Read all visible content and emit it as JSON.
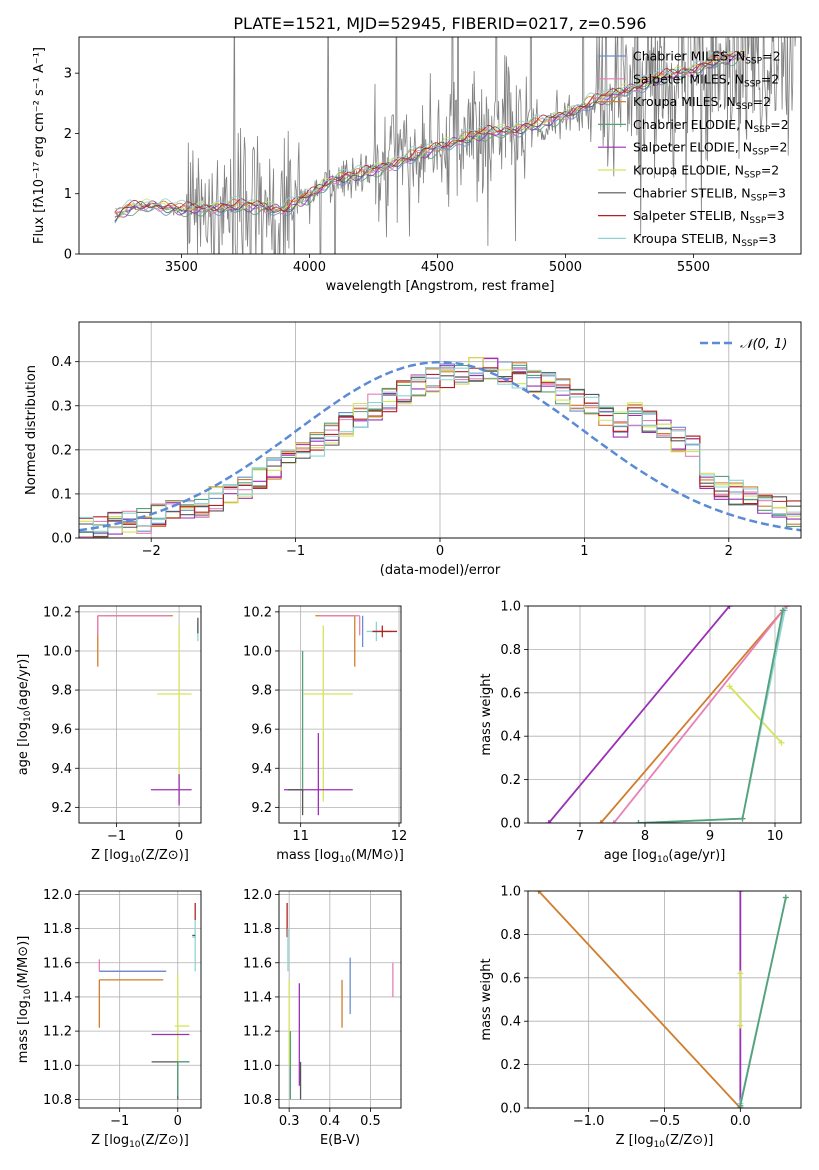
{
  "figure": {
    "title": "PLATE=1521, MJD=52945, FIBERID=0217, z=0.596"
  },
  "chart_data": [
    {
      "id": "spectrum",
      "type": "line",
      "xlabel": "wavelength [Angstrom, rest frame]",
      "ylabel": "Flux [fλ10⁻¹⁷ erg cm⁻² s⁻¹ A⁻¹]",
      "xlim": [
        3100,
        5920
      ],
      "ylim": [
        0,
        3.6
      ],
      "xticks": [
        3500,
        4000,
        4500,
        5000,
        5500
      ],
      "yticks": [
        0,
        1,
        2,
        3
      ],
      "grid": false,
      "legend_position": "upper-right",
      "legend": [
        {
          "name": "Chabrier MILES, N_SSP=2",
          "main": "Chabrier MILES, N",
          "sub": "SSP",
          "tail": "=2",
          "color": "#6a8fd0"
        },
        {
          "name": "Salpeter MILES, N_SSP=2",
          "main": "Salpeter MILES, N",
          "sub": "SSP",
          "tail": "=2",
          "color": "#e97fb6"
        },
        {
          "name": "Kroupa MILES, N_SSP=2",
          "main": "Kroupa MILES, N",
          "sub": "SSP",
          "tail": "=2",
          "color": "#d07d2e"
        },
        {
          "name": "Chabrier ELODIE, N_SSP=2",
          "main": "Chabrier ELODIE, N",
          "sub": "SSP",
          "tail": "=2",
          "color": "#55a17a"
        },
        {
          "name": "Salpeter ELODIE, N_SSP=2",
          "main": "Salpeter ELODIE, N",
          "sub": "SSP",
          "tail": "=2",
          "color": "#9b30b5"
        },
        {
          "name": "Kroupa ELODIE, N_SSP=2",
          "main": "Kroupa ELODIE, N",
          "sub": "SSP",
          "tail": "=2",
          "color": "#d5e45b"
        },
        {
          "name": "Chabrier STELIB, N_SSP=3",
          "main": "Chabrier STELIB, N",
          "sub": "SSP",
          "tail": "=3",
          "color": "#555555"
        },
        {
          "name": "Salpeter STELIB, N_SSP=3",
          "main": "Salpeter STELIB, N",
          "sub": "SSP",
          "tail": "=3",
          "color": "#b22222"
        },
        {
          "name": "Kroupa STELIB, N_SSP=3",
          "main": "Kroupa STELIB, N",
          "sub": "SSP",
          "tail": "=3",
          "color": "#8fd4d4"
        }
      ],
      "data_color": "#808080",
      "model_envelope": {
        "x": [
          3240,
          3300,
          3400,
          3500,
          3600,
          3700,
          3800,
          3900,
          4000,
          4100,
          4200,
          4300,
          4400,
          4500,
          4600,
          4700,
          4800,
          4900,
          5000,
          5100,
          5200,
          5300,
          5400,
          5500,
          5600,
          5700
        ],
        "y": [
          0.6,
          0.76,
          0.8,
          0.72,
          0.75,
          0.78,
          0.78,
          0.72,
          0.95,
          1.25,
          1.3,
          1.45,
          1.6,
          1.75,
          1.9,
          2.0,
          2.05,
          2.15,
          2.3,
          2.5,
          2.65,
          2.8,
          2.95,
          3.05,
          3.2,
          3.3
        ]
      }
    },
    {
      "id": "residuals",
      "type": "histogram",
      "xlabel": "(data-model)/error",
      "ylabel": "Normed distribution",
      "xlim": [
        -2.5,
        2.5
      ],
      "ylim": [
        0,
        0.49
      ],
      "xticks": [
        -2,
        -1,
        0,
        1,
        2
      ],
      "yticks": [
        0.0,
        0.1,
        0.2,
        0.3,
        0.4
      ],
      "grid": true,
      "legend_position": "upper-right",
      "gaussian_label": "𝒩(0, 1)",
      "gaussian_color": "#5b8ad6",
      "bin_width": 0.1
    },
    {
      "id": "age-vs-Z",
      "type": "errorbar",
      "xlabel_main": "Z [log",
      "xlabel_sub": "10",
      "xlabel_tail": "(Z/Z⊙)]",
      "ylabel_main": "age  [log",
      "ylabel_sub": "10",
      "ylabel_tail": "(age/yr)]",
      "xlim": [
        -1.6,
        0.35
      ],
      "ylim": [
        9.12,
        10.23
      ],
      "xticks": [
        -1,
        0
      ],
      "yticks": [
        9.2,
        9.4,
        9.6,
        9.8,
        10.0,
        10.2
      ],
      "grid": true,
      "points": [
        {
          "x": -1.3,
          "y": 10.18,
          "xerr": [
            0,
            1.2
          ],
          "yerr": [
            0.26,
            0
          ],
          "color": "#d07d2e"
        },
        {
          "x": -1.3,
          "y": 10.18,
          "xerr": [
            0,
            1.15
          ],
          "yerr": [
            0.1,
            0
          ],
          "color": "#e97fb6"
        },
        {
          "x": 0.3,
          "y": 10.15,
          "xerr": [
            0,
            0
          ],
          "yerr": [
            0.1,
            0
          ],
          "color": "#8fd4d4"
        },
        {
          "x": 0.3,
          "y": 10.15,
          "xerr": [
            0,
            0
          ],
          "yerr": [
            0.06,
            0.02
          ],
          "color": "#555555"
        },
        {
          "x": 0,
          "y": 9.78,
          "xerr": [
            0.35,
            0.2
          ],
          "yerr": [
            0.55,
            0.35
          ],
          "color": "#d5e45b"
        },
        {
          "x": 0,
          "y": 9.29,
          "xerr": [
            0.45,
            0.2
          ],
          "yerr": [
            0.08,
            0.08
          ],
          "color": "#9b30b5"
        }
      ]
    },
    {
      "id": "age-vs-mass",
      "type": "errorbar",
      "xlabel_main": "mass [log",
      "xlabel_sub": "10",
      "xlabel_tail": "(M/M⊙)]",
      "xlim": [
        10.78,
        12.02
      ],
      "ylim": [
        9.12,
        10.23
      ],
      "xticks": [
        11,
        12
      ],
      "yticks": [
        9.2,
        9.4,
        9.6,
        9.8,
        10.0,
        10.2
      ],
      "grid": true,
      "points": [
        {
          "x": 11.55,
          "y": 10.18,
          "xerr": [
            0.4,
            0
          ],
          "yerr": [
            0.26,
            0
          ],
          "color": "#d07d2e"
        },
        {
          "x": 11.6,
          "y": 10.18,
          "xerr": [
            0.4,
            0
          ],
          "yerr": [
            0.1,
            0
          ],
          "color": "#e97fb6"
        },
        {
          "x": 11.77,
          "y": 10.1,
          "xerr": [
            0.1,
            0.15
          ],
          "yerr": [
            0.05,
            0.05
          ],
          "color": "#8fd4d4"
        },
        {
          "x": 11.83,
          "y": 10.1,
          "xerr": [
            0.1,
            0.15
          ],
          "yerr": [
            0.03,
            0.03
          ],
          "color": "#b22222"
        },
        {
          "x": 11.63,
          "y": 10.1,
          "xerr": [
            0,
            0
          ],
          "yerr": [
            0.08,
            0.08
          ],
          "color": "#6a8fd0"
        },
        {
          "x": 11.23,
          "y": 9.78,
          "xerr": [
            0.2,
            0.3
          ],
          "yerr": [
            0.55,
            0.35
          ],
          "color": "#d5e45b"
        },
        {
          "x": 11.02,
          "y": 9.78,
          "xerr": [
            0,
            0
          ],
          "yerr": [
            0.5,
            0.22
          ],
          "color": "#55a17a"
        },
        {
          "x": 11.18,
          "y": 9.29,
          "xerr": [
            0.35,
            0.35
          ],
          "yerr": [
            0.13,
            0.29
          ],
          "color": "#9b30b5"
        },
        {
          "x": 11.02,
          "y": 9.29,
          "xerr": [
            0.15,
            0
          ],
          "yerr": [
            0.13,
            0
          ],
          "color": "#555555"
        }
      ]
    },
    {
      "id": "mass-weight-vs-age",
      "type": "line",
      "xlabel_main": "age  [log",
      "xlabel_sub": "10",
      "xlabel_tail": "(age/yr)]",
      "ylabel": "mass weight",
      "xlim": [
        6.2,
        10.4
      ],
      "ylim": [
        0,
        1
      ],
      "xticks": [
        7,
        8,
        9,
        10
      ],
      "yticks": [
        0.0,
        0.2,
        0.4,
        0.6,
        0.8,
        1.0
      ],
      "grid": true,
      "series": [
        {
          "x": [
            6.52,
            9.3
          ],
          "y": [
            0,
            1
          ],
          "color": "#9b30b5"
        },
        {
          "x": [
            7.32,
            10.18
          ],
          "y": [
            0,
            1
          ],
          "color": "#d07d2e"
        },
        {
          "x": [
            7.52,
            10.18
          ],
          "y": [
            0,
            1
          ],
          "color": "#e97fb6"
        },
        {
          "x": [
            9.3,
            10.1
          ],
          "y": [
            0.63,
            0.37
          ],
          "color": "#d5e45b"
        },
        {
          "x": [
            7.9,
            9.5,
            10.15
          ],
          "y": [
            0,
            0.02,
            0.98
          ],
          "color": "#8fd4d4"
        },
        {
          "x": [
            7.9,
            9.5,
            10.12
          ],
          "y": [
            0,
            0.02,
            0.98
          ],
          "color": "#55a17a"
        }
      ]
    },
    {
      "id": "mass-vs-Z",
      "type": "errorbar",
      "xlabel_main": "Z [log",
      "xlabel_sub": "10",
      "xlabel_tail": "(Z/Z⊙)]",
      "ylabel_main": "mass [log",
      "ylabel_sub": "10",
      "ylabel_tail": "(M/M⊙)]",
      "xlim": [
        -1.7,
        0.4
      ],
      "ylim": [
        10.75,
        12.02
      ],
      "xticks": [
        -1,
        0
      ],
      "yticks": [
        10.8,
        11.0,
        11.2,
        11.4,
        11.6,
        11.8,
        12.0
      ],
      "grid": true,
      "points": [
        {
          "x": -1.35,
          "y": 11.55,
          "xerr": [
            0,
            1.15
          ],
          "yerr": [
            0,
            0.07
          ],
          "color": "#e97fb6"
        },
        {
          "x": -1.35,
          "y": 11.5,
          "xerr": [
            0,
            1.1
          ],
          "yerr": [
            0.28,
            0
          ],
          "color": "#d07d2e"
        },
        {
          "x": -1.35,
          "y": 11.55,
          "xerr": [
            0,
            1.15
          ],
          "yerr": [
            0,
            0
          ],
          "color": "#6a8fd0"
        },
        {
          "x": 0,
          "y": 11.23,
          "xerr": [
            0.05,
            0.2
          ],
          "yerr": [
            0.3,
            0.3
          ],
          "color": "#d5e45b"
        },
        {
          "x": 0,
          "y": 11.18,
          "xerr": [
            0.45,
            0.2
          ],
          "yerr": [
            0,
            0
          ],
          "color": "#9b30b5"
        },
        {
          "x": 0,
          "y": 11.02,
          "xerr": [
            0.45,
            0.2
          ],
          "yerr": [
            0.22,
            0
          ],
          "color": "#555555"
        },
        {
          "x": 0,
          "y": 11.02,
          "xerr": [
            0,
            0.2
          ],
          "yerr": [
            0.2,
            0
          ],
          "color": "#55a17a"
        },
        {
          "x": 0.3,
          "y": 11.85,
          "xerr": [
            0,
            0
          ],
          "yerr": [
            0,
            0.1
          ],
          "color": "#b22222"
        },
        {
          "x": 0.3,
          "y": 11.75,
          "xerr": [
            0.05,
            0
          ],
          "yerr": [
            0.2,
            0.1
          ],
          "color": "#8fd4d4"
        },
        {
          "x": 0.3,
          "y": 11.76,
          "xerr": [
            0.05,
            0
          ],
          "yerr": [
            0,
            0
          ],
          "color": "#555555"
        }
      ]
    },
    {
      "id": "mass-vs-EBV",
      "type": "errorbar",
      "xlabel": "E(B-V)",
      "xlim": [
        0.275,
        0.575
      ],
      "ylim": [
        10.75,
        12.02
      ],
      "xticks": [
        0.3,
        0.4,
        0.5
      ],
      "yticks": [
        10.8,
        11.0,
        11.2,
        11.4,
        11.6,
        11.8,
        12.0
      ],
      "grid": true,
      "points": [
        {
          "x": 0.295,
          "y": 11.85,
          "xerr": [
            0,
            0
          ],
          "yerr": [
            0.1,
            0.1
          ],
          "color": "#b22222"
        },
        {
          "x": 0.297,
          "y": 11.7,
          "xerr": [
            0,
            0
          ],
          "yerr": [
            0.15,
            0.1
          ],
          "color": "#8fd4d4"
        },
        {
          "x": 0.3,
          "y": 11.2,
          "xerr": [
            0,
            0
          ],
          "yerr": [
            0.2,
            0.3
          ],
          "color": "#d5e45b"
        },
        {
          "x": 0.303,
          "y": 11.0,
          "xerr": [
            0,
            0
          ],
          "yerr": [
            0.2,
            0.2
          ],
          "color": "#55a17a"
        },
        {
          "x": 0.325,
          "y": 11.18,
          "xerr": [
            0,
            0
          ],
          "yerr": [
            0.3,
            0.3
          ],
          "color": "#9b30b5"
        },
        {
          "x": 0.328,
          "y": 11.02,
          "xerr": [
            0,
            0
          ],
          "yerr": [
            0.22,
            0
          ],
          "color": "#555555"
        },
        {
          "x": 0.43,
          "y": 11.5,
          "xerr": [
            0,
            0
          ],
          "yerr": [
            0.28,
            0
          ],
          "color": "#d07d2e"
        },
        {
          "x": 0.45,
          "y": 11.45,
          "xerr": [
            0,
            0
          ],
          "yerr": [
            0.15,
            0.18
          ],
          "color": "#6a8fd0"
        },
        {
          "x": 0.555,
          "y": 11.5,
          "xerr": [
            0,
            0
          ],
          "yerr": [
            0.1,
            0.1
          ],
          "color": "#e97fb6"
        }
      ]
    },
    {
      "id": "mass-weight-vs-Z",
      "type": "line",
      "xlabel_main": "Z [log",
      "xlabel_sub": "10",
      "xlabel_tail": "(Z/Z⊙)]",
      "ylabel": "mass weight",
      "xlim": [
        -1.4,
        0.4
      ],
      "ylim": [
        0,
        1
      ],
      "xticks": [
        -1.0,
        -0.5,
        0.0
      ],
      "yticks": [
        0.0,
        0.2,
        0.4,
        0.6,
        0.8,
        1.0
      ],
      "grid": true,
      "series": [
        {
          "x": [
            -1.33,
            0
          ],
          "y": [
            1,
            0
          ],
          "color": "#d07d2e"
        },
        {
          "x": [
            0,
            0
          ],
          "y": [
            0,
            1
          ],
          "color": "#9b30b5"
        },
        {
          "x": [
            0,
            0
          ],
          "y": [
            0.38,
            0.62
          ],
          "color": "#d5e45b"
        },
        {
          "x": [
            0,
            0.3
          ],
          "y": [
            0.02,
            0.97
          ],
          "color": "#8fd4d4"
        },
        {
          "x": [
            0,
            0.3
          ],
          "y": [
            0.01,
            0.97
          ],
          "color": "#55a17a"
        }
      ]
    }
  ]
}
